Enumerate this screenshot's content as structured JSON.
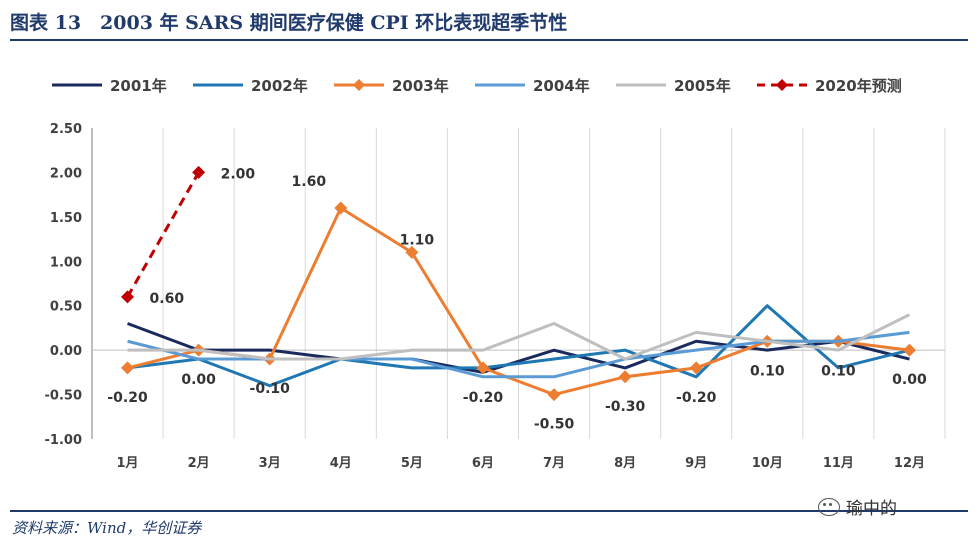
{
  "header": {
    "title": "图表 13　2003 年 SARS 期间医疗保健 CPI 环比表现超季节性"
  },
  "footer": {
    "source": "资料来源：Wind，华创证券",
    "watermark": "瑜中的"
  },
  "chart_data": {
    "type": "line",
    "categories": [
      "1月",
      "2月",
      "3月",
      "4月",
      "5月",
      "6月",
      "7月",
      "8月",
      "9月",
      "10月",
      "11月",
      "12月"
    ],
    "ylim": [
      -1.0,
      2.5
    ],
    "yticks": [
      "2.50",
      "2.00",
      "1.50",
      "1.00",
      "0.50",
      "0.00",
      "-0.50",
      "-1.00"
    ],
    "ytick_values": [
      2.5,
      2.0,
      1.5,
      1.0,
      0.5,
      0.0,
      -0.5,
      -1.0
    ],
    "grid": "vertical",
    "legend": "top",
    "series": [
      {
        "name": "2001年",
        "color": "#1a2a5c",
        "style": "solid",
        "marker": "none",
        "values": [
          0.3,
          0.0,
          0.0,
          -0.1,
          -0.1,
          -0.25,
          0.0,
          -0.2,
          0.1,
          0.0,
          0.1,
          -0.1
        ]
      },
      {
        "name": "2002年",
        "color": "#1f78b4",
        "style": "solid",
        "marker": "none",
        "values": [
          -0.2,
          -0.1,
          -0.4,
          -0.1,
          -0.2,
          -0.2,
          -0.1,
          0.0,
          -0.3,
          0.5,
          -0.2,
          0.0
        ]
      },
      {
        "name": "2003年",
        "color": "#ed7d31",
        "style": "solid",
        "marker": "diamond",
        "values": [
          -0.2,
          0.0,
          -0.1,
          1.6,
          1.1,
          -0.2,
          -0.5,
          -0.3,
          -0.2,
          0.1,
          0.1,
          0.0
        ],
        "labels": [
          "-0.20",
          "0.00",
          "-0.10",
          "1.60",
          "1.10",
          "-0.20",
          "-0.50",
          "-0.30",
          "-0.20",
          "0.10",
          "0.10",
          "0.00"
        ]
      },
      {
        "name": "2004年",
        "color": "#5b9bd5",
        "style": "solid",
        "marker": "none",
        "values": [
          0.1,
          -0.1,
          -0.1,
          -0.1,
          -0.1,
          -0.3,
          -0.3,
          -0.1,
          0.0,
          0.1,
          0.1,
          0.2
        ]
      },
      {
        "name": "2005年",
        "color": "#bfbfbf",
        "style": "solid",
        "marker": "none",
        "values": [
          0.0,
          0.0,
          -0.1,
          -0.1,
          0.0,
          0.0,
          0.3,
          -0.1,
          0.2,
          0.1,
          0.0,
          0.4
        ]
      },
      {
        "name": "2020年预测",
        "color": "#c00000",
        "style": "dashed",
        "marker": "diamond",
        "values": [
          0.6,
          2.0,
          null,
          null,
          null,
          null,
          null,
          null,
          null,
          null,
          null,
          null
        ],
        "labels": [
          "0.60",
          "2.00"
        ]
      }
    ]
  }
}
